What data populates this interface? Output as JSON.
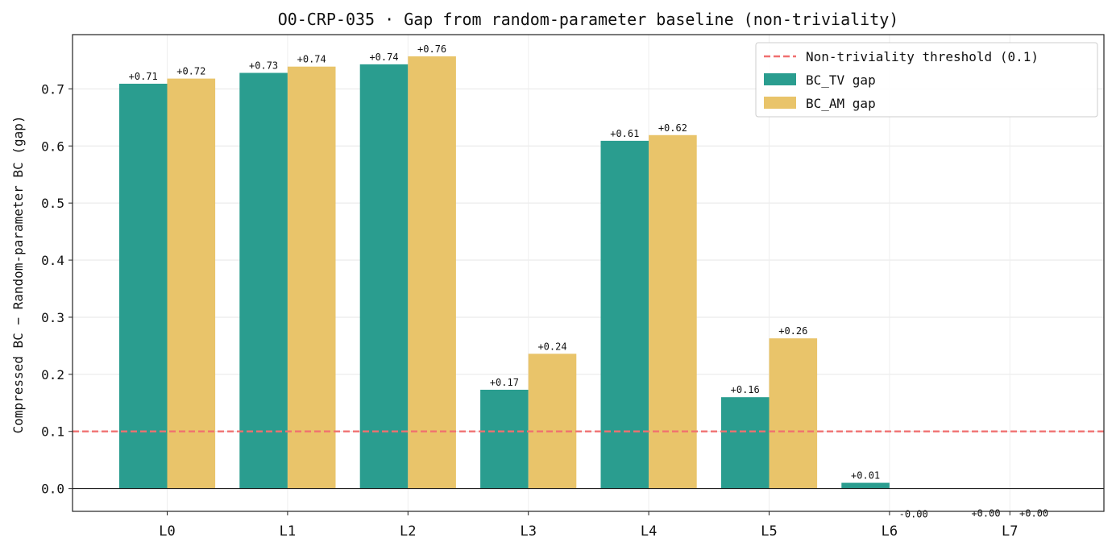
{
  "chart_data": {
    "type": "bar",
    "title": "O0-CRP-035 · Gap from random-parameter baseline (non-triviality)",
    "xlabel": "",
    "ylabel": "Compressed BC − Random-parameter BC (gap)",
    "categories": [
      "L0",
      "L1",
      "L2",
      "L3",
      "L4",
      "L5",
      "L6",
      "L7"
    ],
    "series": [
      {
        "name": "BC_TV gap",
        "color": "#2a9d8f",
        "values": [
          0.709,
          0.728,
          0.743,
          0.173,
          0.609,
          0.16,
          0.01,
          0.0
        ],
        "labels": [
          "+0.71",
          "+0.73",
          "+0.74",
          "+0.17",
          "+0.61",
          "+0.16",
          "+0.01",
          "+0.00"
        ]
      },
      {
        "name": "BC_AM gap",
        "color": "#e9c46a",
        "values": [
          0.718,
          0.739,
          0.757,
          0.236,
          0.619,
          0.263,
          -0.0,
          0.0
        ],
        "labels": [
          "+0.72",
          "+0.74",
          "+0.76",
          "+0.24",
          "+0.62",
          "+0.26",
          "-0.00",
          "+0.00"
        ]
      }
    ],
    "threshold": {
      "name": "Non-triviality threshold (0.1)",
      "value": 0.1,
      "color": "#f07070"
    },
    "ylim": [
      -0.04,
      0.795
    ],
    "yticks": [
      "0.0",
      "0.1",
      "0.2",
      "0.3",
      "0.4",
      "0.5",
      "0.6",
      "0.7"
    ],
    "grid": true,
    "legend_position": "top-right"
  }
}
